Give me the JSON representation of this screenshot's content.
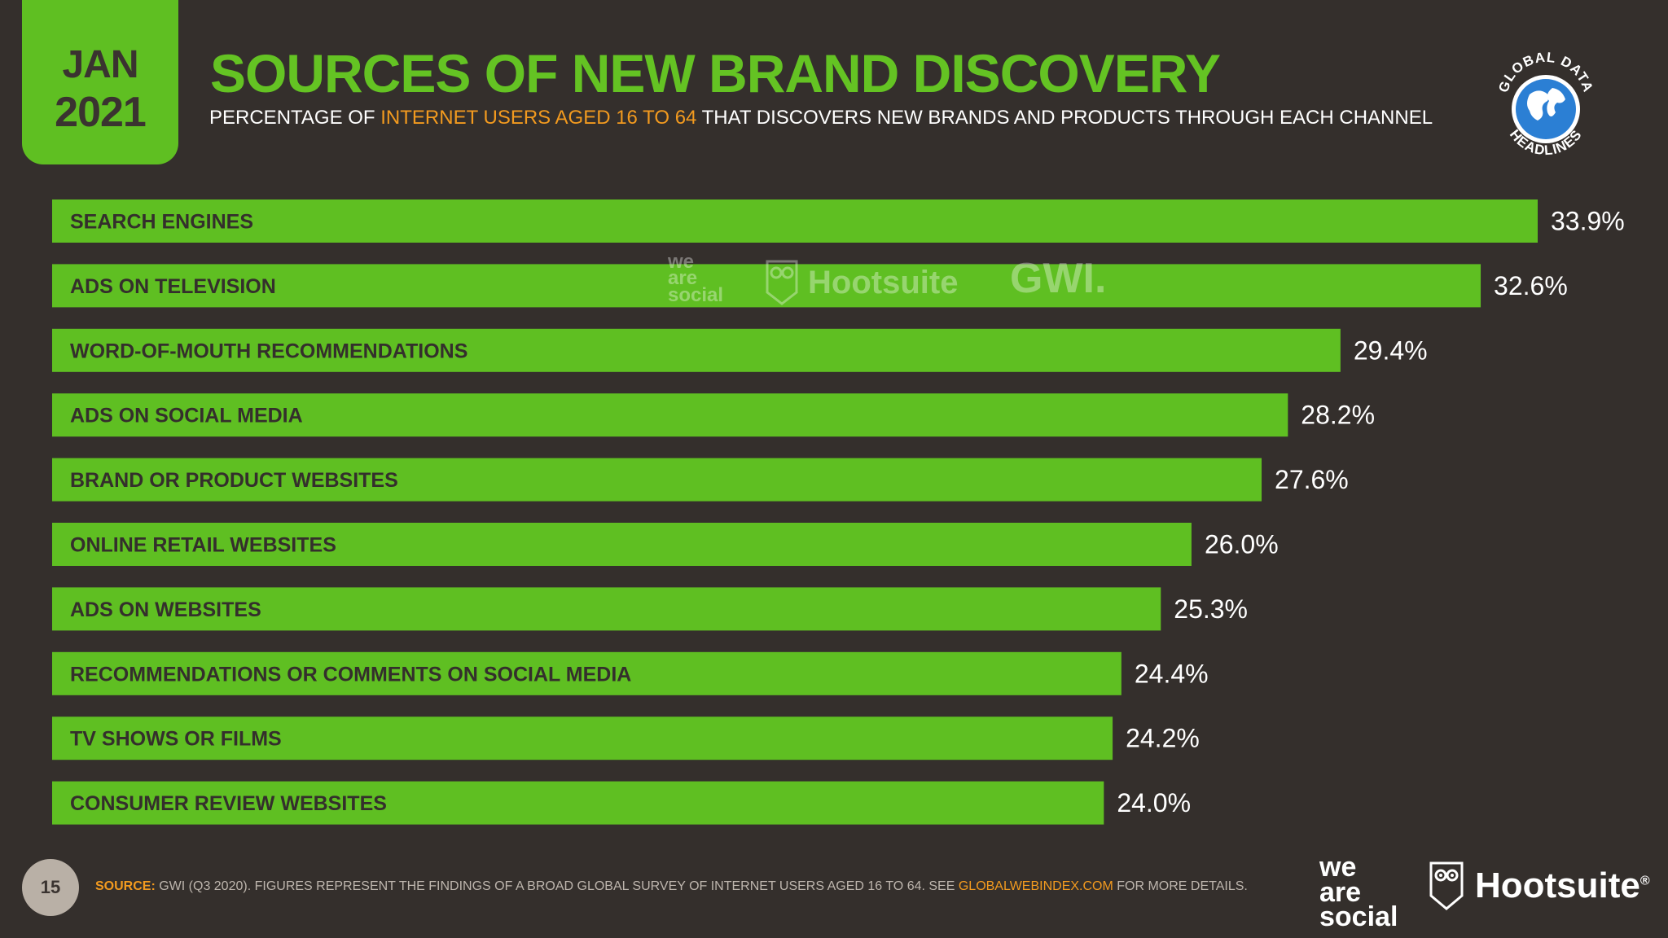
{
  "header": {
    "month": "JAN",
    "year": "2021",
    "title": "SOURCES OF NEW BRAND DISCOVERY",
    "subtitle_pre": "PERCENTAGE OF ",
    "subtitle_highlight": "INTERNET USERS AGED 16 TO 64",
    "subtitle_post": " THAT DISCOVERS NEW BRANDS AND PRODUCTS THROUGH EACH CHANNEL",
    "badge_text_top": "GLOBAL DATA",
    "badge_text_bottom": "HEADLINES"
  },
  "colors": {
    "background": "#342f2c",
    "bar": "#5fbf22",
    "title": "#64c323",
    "highlight": "#f29a1f",
    "bar_label": "#342f2c",
    "value_label": "#ffffff"
  },
  "watermark": {
    "we_are_social": [
      "we",
      "are",
      "social"
    ],
    "hootsuite": "Hootsuite",
    "gwi": "GWI."
  },
  "chart_data": {
    "type": "bar",
    "orientation": "horizontal",
    "title": "SOURCES OF NEW BRAND DISCOVERY",
    "categories": [
      "SEARCH ENGINES",
      "ADS ON TELEVISION",
      "WORD-OF-MOUTH RECOMMENDATIONS",
      "ADS ON SOCIAL MEDIA",
      "BRAND OR PRODUCT WEBSITES",
      "ONLINE RETAIL WEBSITES",
      "ADS ON WEBSITES",
      "RECOMMENDATIONS OR COMMENTS ON SOCIAL MEDIA",
      "TV SHOWS OR FILMS",
      "CONSUMER REVIEW WEBSITES"
    ],
    "values": [
      33.9,
      32.6,
      29.4,
      28.2,
      27.6,
      26.0,
      25.3,
      24.4,
      24.2,
      24.0
    ],
    "value_labels": [
      "33.9%",
      "32.6%",
      "29.4%",
      "28.2%",
      "27.6%",
      "26.0%",
      "25.3%",
      "24.4%",
      "24.2%",
      "24.0%"
    ],
    "xlim": [
      0,
      33.9
    ],
    "grid": false,
    "legend": "none"
  },
  "footer": {
    "page_number": "15",
    "source_label": "SOURCE:",
    "source_text": " GWI (Q3 2020). FIGURES REPRESENT THE FINDINGS OF A BROAD GLOBAL SURVEY OF INTERNET USERS AGED 16 TO 64. SEE ",
    "source_link": "GLOBALWEBINDEX.COM",
    "source_tail": " FOR MORE DETAILS.",
    "logo_we": [
      "we",
      "are",
      "social"
    ],
    "logo_hootsuite": "Hootsuite",
    "logo_reg": "®"
  }
}
